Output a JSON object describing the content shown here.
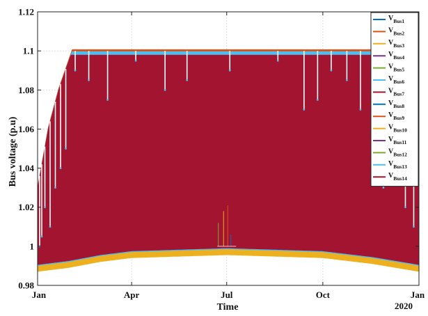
{
  "chart_data": {
    "type": "line",
    "xlabel": "Time",
    "ylabel": "Bus voltage (p.u)",
    "ylim": [
      0.98,
      1.12
    ],
    "y_ticks": [
      "0.98",
      "1",
      "1.02",
      "1.04",
      "1.06",
      "1.08",
      "1.1",
      "1.12"
    ],
    "x_ticks": [
      {
        "label": "Jan",
        "day": 0
      },
      {
        "label": "Apr",
        "day": 90
      },
      {
        "label": "Jul",
        "day": 181
      },
      {
        "label": "Oct",
        "day": 273
      },
      {
        "label": "Jan",
        "sublabel": "2020",
        "day": 365
      }
    ],
    "xlim_days": [
      0,
      365
    ],
    "grid": true,
    "legend_position": "top-right",
    "series": [
      {
        "name": "V",
        "subscript": "Bus1",
        "color": "#0072BD"
      },
      {
        "name": "V",
        "subscript": "Bus2",
        "color": "#D95319"
      },
      {
        "name": "V",
        "subscript": "Bus3",
        "color": "#EDB120"
      },
      {
        "name": "V",
        "subscript": "Bus4",
        "color": "#7E2F8E"
      },
      {
        "name": "V",
        "subscript": "Bus5",
        "color": "#77AC30"
      },
      {
        "name": "V",
        "subscript": "Bus6",
        "color": "#4DBEEE"
      },
      {
        "name": "V",
        "subscript": "Bus7",
        "color": "#A2142F"
      },
      {
        "name": "V",
        "subscript": "Bus8",
        "color": "#0072BD"
      },
      {
        "name": "V",
        "subscript": "Bus9",
        "color": "#D95319"
      },
      {
        "name": "V",
        "subscript": "Bus10",
        "color": "#EDB120"
      },
      {
        "name": "V",
        "subscript": "Bus11",
        "color": "#7E2F8E"
      },
      {
        "name": "V",
        "subscript": "Bus12",
        "color": "#77AC30"
      },
      {
        "name": "V",
        "subscript": "Bus13",
        "color": "#4DBEEE"
      },
      {
        "name": "V",
        "subscript": "Bus14",
        "color": "#A2142F"
      }
    ],
    "envelope": {
      "upper_cap": 1.1,
      "upper_band": 1.098,
      "lower": [
        {
          "day": 0,
          "value": 0.99
        },
        {
          "day": 30,
          "value": 0.992
        },
        {
          "day": 60,
          "value": 0.995
        },
        {
          "day": 90,
          "value": 0.997
        },
        {
          "day": 181,
          "value": 0.9985
        },
        {
          "day": 273,
          "value": 0.997
        },
        {
          "day": 320,
          "value": 0.994
        },
        {
          "day": 365,
          "value": 0.99
        }
      ],
      "upper_start": [
        {
          "day": 0,
          "value": 1.03
        },
        {
          "day": 10,
          "value": 1.06
        },
        {
          "day": 20,
          "value": 1.08
        },
        {
          "day": 33,
          "value": 1.1
        }
      ],
      "upper_end": [
        {
          "day": 340,
          "value": 1.1
        },
        {
          "day": 350,
          "value": 1.075
        },
        {
          "day": 358,
          "value": 1.05
        },
        {
          "day": 365,
          "value": 1.04
        }
      ]
    },
    "outlier_dips": [
      {
        "day": 2,
        "to": 1.0
      },
      {
        "day": 4,
        "to": 1.005
      },
      {
        "day": 7,
        "to": 1.02
      },
      {
        "day": 12,
        "to": 1.01
      },
      {
        "day": 17,
        "to": 1.03
      },
      {
        "day": 22,
        "to": 1.04
      },
      {
        "day": 27,
        "to": 1.05
      },
      {
        "day": 36,
        "to": 1.09
      },
      {
        "day": 49,
        "to": 1.085
      },
      {
        "day": 67,
        "to": 1.075
      },
      {
        "day": 94,
        "to": 1.095
      },
      {
        "day": 122,
        "to": 1.08
      },
      {
        "day": 143,
        "to": 1.085
      },
      {
        "day": 184,
        "to": 1.09
      },
      {
        "day": 230,
        "to": 1.095
      },
      {
        "day": 255,
        "to": 1.07
      },
      {
        "day": 268,
        "to": 1.075
      },
      {
        "day": 281,
        "to": 1.09
      },
      {
        "day": 296,
        "to": 1.085
      },
      {
        "day": 309,
        "to": 1.07
      },
      {
        "day": 321,
        "to": 1.05
      },
      {
        "day": 331,
        "to": 1.03
      },
      {
        "day": 343,
        "to": 1.05
      },
      {
        "day": 352,
        "to": 1.02
      },
      {
        "day": 360,
        "to": 1.01
      }
    ],
    "midyear_spikes": [
      {
        "day": 173,
        "value": 1.012
      },
      {
        "day": 178,
        "value": 1.018
      },
      {
        "day": 182,
        "value": 1.021
      },
      {
        "day": 185,
        "value": 1.006
      }
    ]
  }
}
